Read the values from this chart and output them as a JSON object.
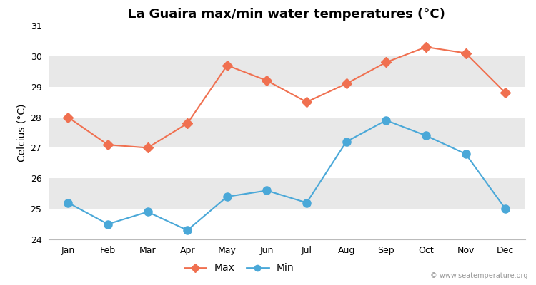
{
  "title": "La Guaira max/min water temperatures (°C)",
  "ylabel": "Celcius (°C)",
  "months": [
    "Jan",
    "Feb",
    "Mar",
    "Apr",
    "May",
    "Jun",
    "Jul",
    "Aug",
    "Sep",
    "Oct",
    "Nov",
    "Dec"
  ],
  "max_temps": [
    28.0,
    27.1,
    27.0,
    27.8,
    29.7,
    29.2,
    28.5,
    29.1,
    29.8,
    30.3,
    30.1,
    28.8
  ],
  "min_temps": [
    25.2,
    24.5,
    24.9,
    24.3,
    25.4,
    25.6,
    25.2,
    27.2,
    27.9,
    27.4,
    26.8,
    25.0
  ],
  "max_color": "#f07050",
  "min_color": "#4aa8d8",
  "ylim": [
    24,
    31
  ],
  "yticks": [
    24,
    25,
    26,
    27,
    28,
    29,
    30,
    31
  ],
  "band_color_odd": "#e8e8e8",
  "band_color_even": "#ffffff",
  "fig_bg_color": "#ffffff",
  "watermark": "© www.seatemperature.org",
  "title_fontsize": 13,
  "axis_label_fontsize": 10,
  "tick_fontsize": 9,
  "legend_fontsize": 10,
  "marker_size_max": 7,
  "marker_size_min": 8,
  "line_width": 1.5
}
